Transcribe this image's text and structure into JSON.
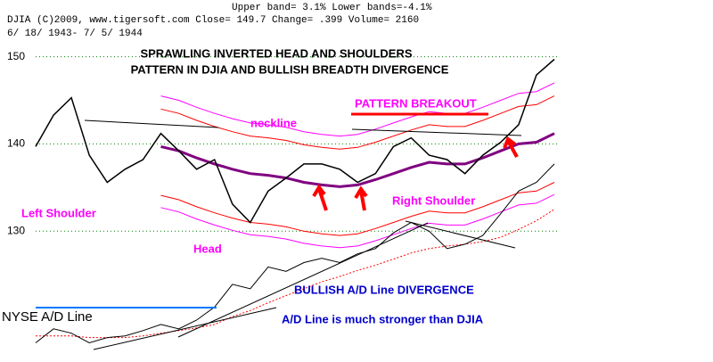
{
  "chart_data": {
    "type": "line",
    "header": [
      "Upper band= 3.1%  Lower bands=-4.1%",
      "DJIA     (C)2009, www.tigersoft.com     Close=   149.7  Change= .399 Volume= 2160",
      "6/ 18/ 1943- 7/ 5/ 1944"
    ],
    "annotations": [
      "SPRAWLING INVERTED HEAD AND SHOULDERS",
      "PATTERN IN DJIA AND BULLISH BREADTH DIVERGENCE",
      "neckline",
      "PATTERN BREAKOUT",
      "Left Shoulder",
      "Head",
      "Right Shoulder",
      "BULLISH A/D Line DIVERGENCE",
      "A/D Line is much stronger than DJIA",
      "NYSE A/D Line"
    ],
    "ylim": [
      115,
      156.5
    ],
    "yticks": [
      130,
      140,
      150
    ],
    "grid": true,
    "series": [
      {
        "color": "#ff00ff",
        "width": 1,
        "values": [
          null,
          null,
          null,
          null,
          null,
          null,
          null,
          145.5,
          145.0,
          144.2,
          143.5,
          142.9,
          142.4,
          142.2,
          141.9,
          141.4,
          141.1,
          140.9,
          141.1,
          141.7,
          142.4,
          143.1,
          143.7,
          143.5,
          143.5,
          144.2,
          145.0,
          145.8,
          146.0,
          147.0
        ]
      },
      {
        "color": "#ff00ff",
        "width": 1,
        "values": [
          null,
          null,
          null,
          null,
          null,
          null,
          null,
          132.7,
          132.2,
          131.4,
          130.7,
          130.1,
          129.6,
          129.4,
          129.1,
          128.6,
          128.3,
          128.1,
          128.3,
          128.9,
          129.6,
          130.3,
          130.9,
          130.7,
          130.7,
          131.4,
          132.2,
          133.0,
          133.2,
          134.2
        ]
      },
      {
        "color": "#ff0000",
        "width": 1,
        "values": [
          null,
          null,
          null,
          null,
          null,
          null,
          null,
          144.0,
          143.5,
          142.7,
          142.0,
          141.4,
          140.9,
          140.7,
          140.4,
          139.9,
          139.6,
          139.4,
          139.6,
          140.2,
          140.9,
          141.6,
          142.2,
          142.0,
          142.0,
          142.7,
          143.5,
          144.3,
          144.5,
          145.5
        ]
      },
      {
        "color": "#ff0000",
        "width": 1,
        "values": [
          null,
          null,
          null,
          null,
          null,
          null,
          null,
          134.1,
          133.6,
          132.8,
          132.1,
          131.5,
          131.0,
          130.8,
          130.5,
          130.0,
          129.7,
          129.5,
          129.7,
          130.3,
          131.0,
          131.7,
          132.3,
          132.1,
          132.1,
          132.8,
          133.6,
          134.4,
          134.6,
          135.6
        ]
      },
      {
        "color": "#800080",
        "width": 3,
        "values": [
          null,
          null,
          null,
          null,
          null,
          null,
          null,
          139.7,
          139.2,
          138.4,
          137.7,
          137.1,
          136.6,
          136.4,
          136.1,
          135.6,
          135.3,
          135.1,
          135.3,
          135.9,
          136.6,
          137.3,
          137.9,
          137.7,
          137.7,
          138.4,
          139.2,
          140.0,
          140.2,
          141.2
        ]
      },
      {
        "color": "#000000",
        "width": 1.5,
        "values": [
          139.7,
          143.3,
          145.3,
          138.7,
          135.6,
          137.1,
          138.2,
          141.2,
          139.2,
          137.1,
          138.2,
          133.1,
          131.0,
          134.6,
          136.1,
          137.7,
          137.7,
          137.1,
          135.6,
          136.6,
          139.7,
          140.7,
          138.7,
          138.2,
          136.6,
          138.7,
          140.2,
          142.2,
          147.9,
          149.7
        ]
      },
      {
        "color": "#ff0000",
        "width": 1,
        "style": "dotted",
        "values": [
          118.0,
          118.0,
          118.0,
          117.8,
          117.8,
          117.8,
          118.0,
          118.3,
          118.6,
          118.9,
          119.3,
          120.2,
          120.9,
          121.8,
          122.6,
          123.4,
          124.2,
          124.8,
          125.5,
          126.1,
          126.8,
          127.5,
          128.0,
          128.3,
          128.5,
          128.8,
          129.3,
          130.2,
          131.2,
          132.5
        ]
      },
      {
        "color": "#000000",
        "width": 1,
        "values": [
          117.2,
          118.8,
          118.3,
          117.2,
          117.8,
          118.0,
          118.6,
          119.3,
          118.8,
          119.8,
          121.3,
          123.9,
          123.4,
          125.9,
          125.4,
          126.4,
          126.9,
          126.4,
          127.4,
          128.0,
          129.8,
          131.0,
          130.0,
          128.0,
          128.5,
          129.5,
          132.0,
          134.6,
          135.6,
          137.7
        ]
      }
    ]
  }
}
